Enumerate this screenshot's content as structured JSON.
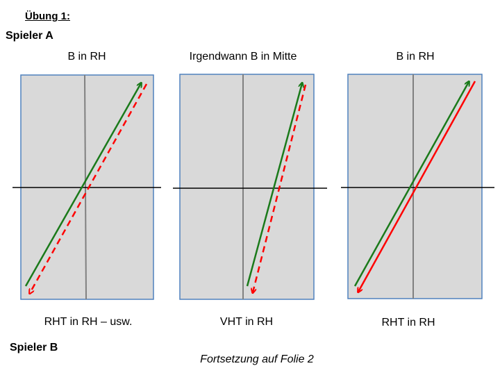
{
  "header": {
    "exercise_title": "Übung 1:",
    "player_a": "Spieler A",
    "player_b": "Spieler B"
  },
  "panels": [
    {
      "top_label": "B in RH",
      "bottom_label": "RHT in RH – usw.",
      "return_arrow": "dashed"
    },
    {
      "top_label": "Irgendwann B in Mitte",
      "bottom_label": "VHT in RH",
      "return_arrow": "dashed"
    },
    {
      "top_label": "B in RH",
      "bottom_label": "RHT in RH",
      "return_arrow": "solid"
    }
  ],
  "footnote": "Fortsetzung auf Folie 2",
  "colors": {
    "court_fill": "#d9d9d9",
    "court_border": "#4f81bd",
    "center_line": "#808080",
    "net_line": "#000000",
    "serve_arrow": "#1a7a1a",
    "return_arrow": "#ff0000"
  }
}
